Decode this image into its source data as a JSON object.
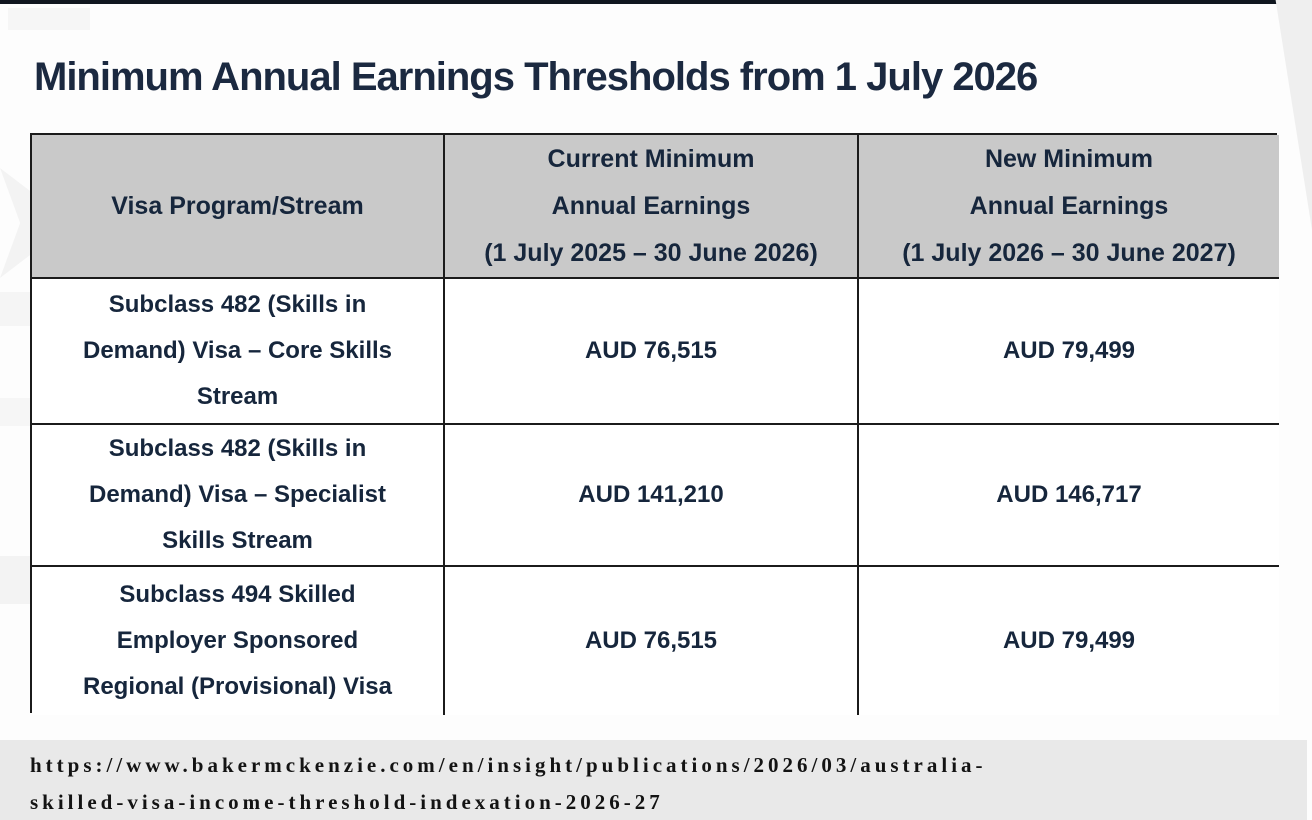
{
  "page": {
    "title": "Minimum Annual Earnings Thresholds from 1 July 2026"
  },
  "table": {
    "header": {
      "col1": "Visa Program/Stream",
      "col2_lines": [
        "Current Minimum",
        "Annual Earnings",
        "(1 July 2025 – 30 June 2026)"
      ],
      "col3_lines": [
        "New Minimum",
        "Annual Earnings",
        "(1 July 2026 – 30 June 2027)"
      ]
    },
    "rows": [
      {
        "program": "Subclass 482 (Skills in Demand) Visa – Core Skills Stream",
        "current": "AUD 76,515",
        "new": "AUD 79,499"
      },
      {
        "program": "Subclass 482 (Skills in Demand) Visa – Specialist Skills Stream",
        "current": "AUD 141,210",
        "new": "AUD 146,717"
      },
      {
        "program": "Subclass 494 Skilled Employer Sponsored Regional (Provisional) Visa",
        "current": "AUD 76,515",
        "new": "AUD 79,499"
      }
    ]
  },
  "source": {
    "lines": [
      "https://www.bakermckenzie.com/en/insight/publications/2026/03/australia-",
      "skilled-visa-income-threshold-indexation-2026-27"
    ]
  },
  "colors": {
    "text_navy": "#1b2940",
    "header_bg": "#c9c9c9",
    "source_band_bg": "#e9e9e9",
    "border": "#1b1b1b",
    "top_bar": "#10161f"
  }
}
